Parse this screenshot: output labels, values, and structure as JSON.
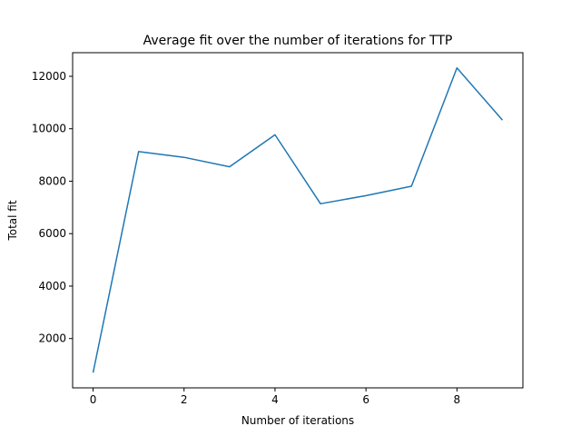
{
  "chart_data": {
    "type": "line",
    "title": "Average fit over the number of iterations for TTP",
    "xlabel": "Number of iterations",
    "ylabel": "Total fit",
    "x": [
      0,
      1,
      2,
      3,
      4,
      5,
      6,
      7,
      8,
      9
    ],
    "series": [
      {
        "values": [
          700,
          9130,
          8910,
          8550,
          9770,
          7140,
          7450,
          7810,
          12320,
          10330
        ],
        "color": "#1f77b4"
      }
    ],
    "xlim": [
      -0.45,
      9.45
    ],
    "ylim": [
      120,
      12900
    ],
    "xticks": [
      0,
      2,
      4,
      6,
      8
    ],
    "yticks": [
      2000,
      4000,
      6000,
      8000,
      10000,
      12000
    ],
    "grid": false,
    "legend": "none"
  }
}
